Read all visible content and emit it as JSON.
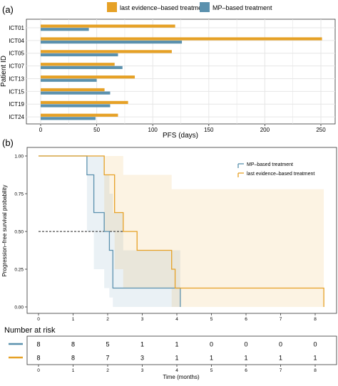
{
  "panels": {
    "a": "(a)",
    "b": "(b)"
  },
  "colors": {
    "last": "#E6A126",
    "mp": "#5B91AE",
    "grid": "#E6E6E6",
    "frame": "#333333"
  },
  "chart_data": [
    {
      "type": "bar",
      "orientation": "horizontal",
      "categories": [
        "ICT01",
        "ICT04",
        "ICT05",
        "ICT07",
        "ICT13",
        "ICT15",
        "ICT19",
        "ICT24"
      ],
      "series": [
        {
          "name": "last evidence–based treatment",
          "color_key": "last",
          "values": [
            120,
            251,
            117,
            66,
            84,
            57,
            78,
            69
          ]
        },
        {
          "name": "MP–based treatment",
          "color_key": "mp",
          "values": [
            43,
            126,
            69,
            73,
            50,
            62,
            62,
            49
          ]
        }
      ],
      "xlabel": "PFS (days)",
      "ylabel": "Patient ID",
      "xticks": [
        "0",
        "50",
        "100",
        "150",
        "200",
        "250"
      ],
      "xlim": [
        0,
        260
      ],
      "grid": true,
      "legend_position": "top"
    },
    {
      "type": "line",
      "step": true,
      "xlabel": "Time (months)",
      "ylabel": "Progression–free survival probability",
      "xlim": [
        0,
        8.4
      ],
      "ylim": [
        0,
        1.05
      ],
      "xticks": [
        "0",
        "1",
        "2",
        "3",
        "4",
        "5",
        "6",
        "7",
        "8"
      ],
      "yticks": [
        "0.00",
        "0.25",
        "0.50",
        "0.75",
        "1.00"
      ],
      "legend_position": "top-right",
      "median_line_y": 0.5,
      "series": [
        {
          "name": "MP–based treatment",
          "color_key": "mp",
          "x": [
            0,
            1.4,
            1.6,
            1.9,
            2.05,
            2.15,
            2.45,
            4.1
          ],
          "y": [
            1.0,
            0.875,
            0.625,
            0.5,
            0.375,
            0.125,
            0.125,
            0.0
          ],
          "ci": {
            "x": [
              1.4,
              1.6,
              1.9,
              2.05,
              2.15,
              2.45
            ],
            "upper": [
              1.0,
              1.0,
              0.875,
              0.75,
              0.625,
              0.375
            ],
            "lower": [
              0.5,
              0.25,
              0.125,
              0.0625,
              0.0,
              0.0
            ]
          }
        },
        {
          "name": "last evidence–based treatment",
          "color_key": "last",
          "x": [
            0,
            1.9,
            2.2,
            2.45,
            2.85,
            3.85,
            3.95,
            8.25
          ],
          "y": [
            1.0,
            0.875,
            0.625,
            0.5,
            0.375,
            0.25,
            0.125,
            0.0
          ],
          "ci": {
            "x": [
              1.9,
              2.2,
              2.45,
              2.85,
              3.85,
              3.95
            ],
            "upper": [
              1.0,
              1.0,
              0.875,
              0.875,
              0.78,
              0.78
            ],
            "lower": [
              0.5,
              0.25,
              0.125,
              0.125,
              0.0,
              0.0
            ]
          }
        }
      ],
      "risk_table": {
        "title": "Number at risk",
        "times": [
          "0",
          "1",
          "2",
          "3",
          "4",
          "5",
          "6",
          "7",
          "8"
        ],
        "rows": [
          {
            "color_key": "mp",
            "values": [
              "8",
              "8",
              "5",
              "1",
              "1",
              "0",
              "0",
              "0",
              "0"
            ]
          },
          {
            "color_key": "last",
            "values": [
              "8",
              "8",
              "7",
              "3",
              "1",
              "1",
              "1",
              "1",
              "1"
            ]
          }
        ]
      }
    }
  ]
}
